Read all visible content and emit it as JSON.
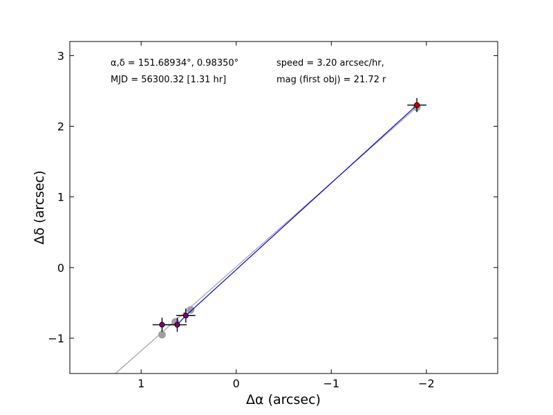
{
  "chart_data": {
    "type": "scatter",
    "title": "",
    "xlabel": "Δα (arcsec)",
    "ylabel": "Δδ (arcsec)",
    "xlim": [
      1.75,
      -2.75
    ],
    "ylim": [
      -1.5,
      3.2
    ],
    "x_inverted": true,
    "xticks": [
      1,
      0,
      -1,
      -2
    ],
    "xtick_labels": [
      "1",
      "0",
      "−1",
      "−2"
    ],
    "yticks": [
      -1,
      0,
      1,
      2,
      3
    ],
    "ytick_labels": [
      "−1",
      "0",
      "1",
      "2",
      "3"
    ],
    "grid": false,
    "legend": "none",
    "annotations": {
      "coords": "α,δ = 151.68934°, 0.98350°",
      "mjd": "MJD = 56300.32 [1.31 hr]",
      "speed": "speed = 3.20 arcsec/hr,",
      "mag": "mag (first obj) = 21.72 r"
    },
    "series": [
      {
        "kind": "predicted_positions",
        "color": "#a0a0a0",
        "line_x": [
          1.27,
          -1.9
        ],
        "line_y": [
          -1.5,
          2.27
        ],
        "points_x": [
          0.78,
          0.64,
          0.48,
          -1.9
        ],
        "points_y": [
          -0.95,
          -0.77,
          -0.6,
          2.27
        ]
      },
      {
        "kind": "measured_positions",
        "color": "#800080",
        "line_color": "#0000cc",
        "path_x": [
          0.78,
          0.62,
          0.53,
          -1.9
        ],
        "path_y": [
          -0.81,
          -0.81,
          -0.68,
          2.3
        ],
        "points_x": [
          0.78,
          0.62,
          0.53
        ],
        "points_y": [
          -0.81,
          -0.81,
          -0.68
        ],
        "xerr": [
          0.1,
          0.1,
          0.1
        ],
        "yerr": [
          0.1,
          0.1,
          0.1
        ]
      },
      {
        "kind": "last_object",
        "color": "#cc0000",
        "points_x": [
          -1.9
        ],
        "points_y": [
          2.3
        ],
        "xerr": [
          0.1
        ],
        "yerr": [
          0.1
        ]
      }
    ]
  }
}
